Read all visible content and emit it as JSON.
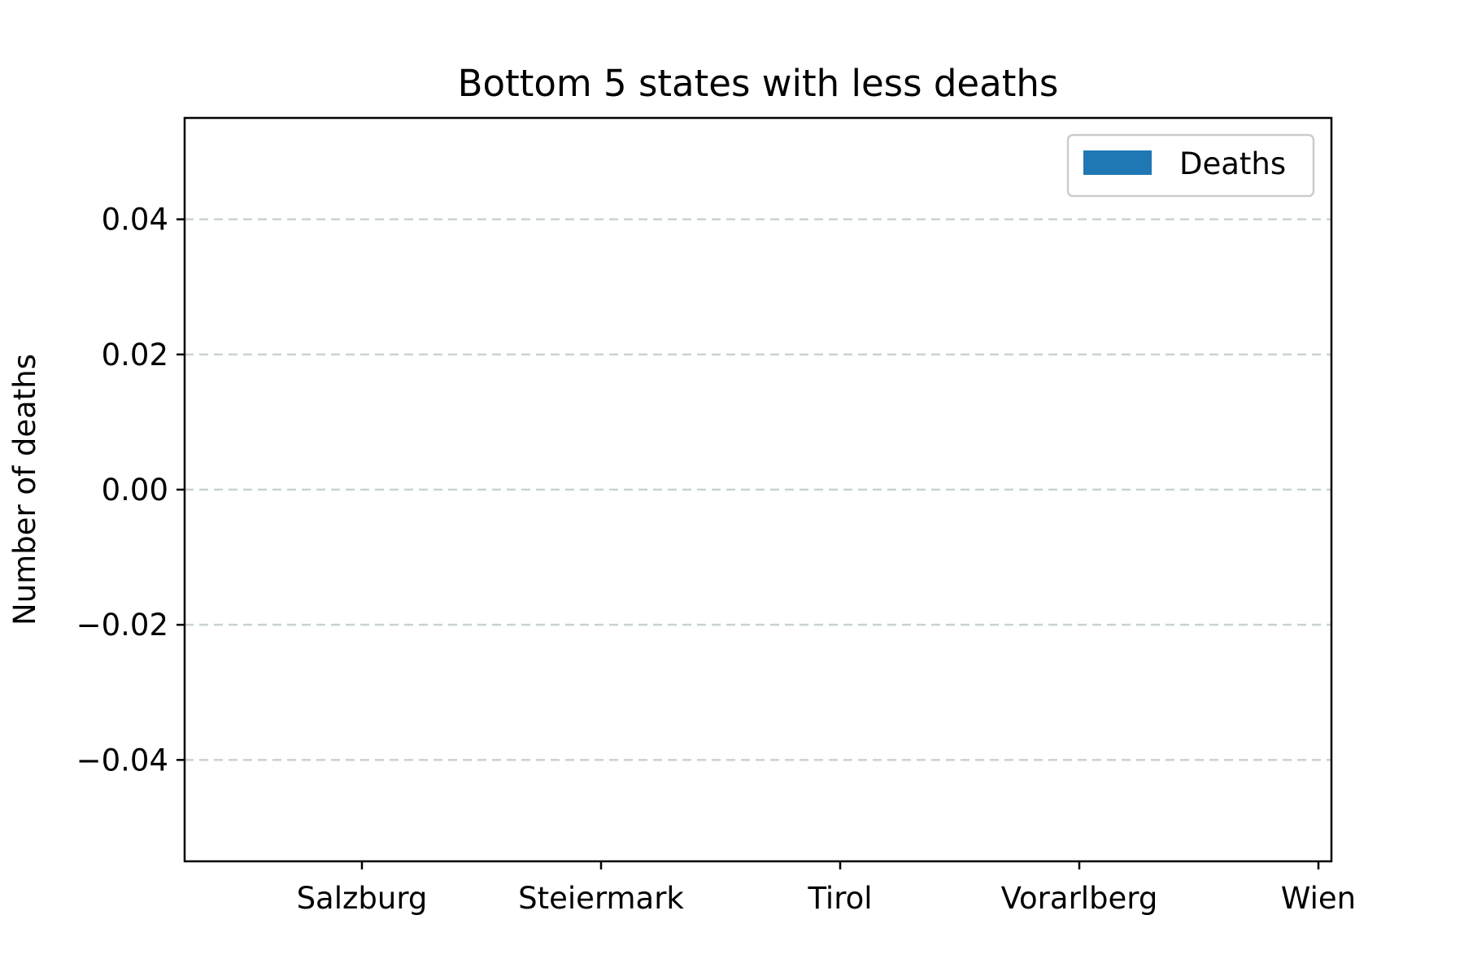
{
  "chart_data": {
    "type": "bar",
    "title": "Bottom 5 states with less deaths",
    "xlabel": "",
    "ylabel": "Number of deaths",
    "categories": [
      "Salzburg",
      "Steiermark",
      "Tirol",
      "Vorarlberg",
      "Wien"
    ],
    "series": [
      {
        "name": "Deaths",
        "values": [
          0,
          0,
          0,
          0,
          0
        ],
        "color": "#1f77b4"
      }
    ],
    "ylim": [
      -0.055,
      0.055
    ],
    "yticks": [
      -0.04,
      -0.02,
      0.0,
      0.02,
      0.04
    ],
    "ytick_labels": [
      "−0.04",
      "−0.02",
      "0.00",
      "0.02",
      "0.04"
    ],
    "grid": {
      "axis": "y",
      "style": "dashed",
      "color": "#c8d3d0"
    },
    "legend": {
      "placement": "upper right"
    }
  }
}
